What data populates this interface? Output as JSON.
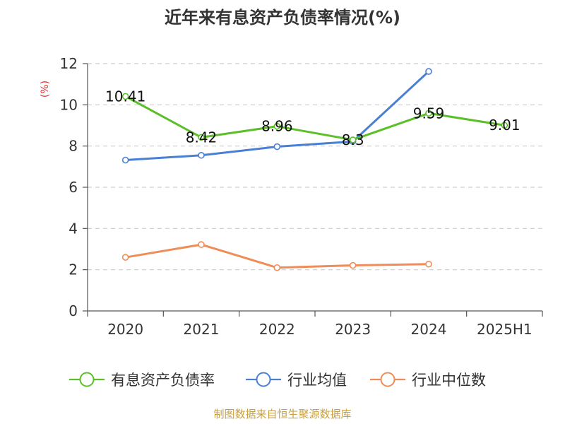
{
  "chart_data": {
    "type": "line",
    "title": "近年来有息资产负债率情况(%)",
    "unit_label": "(%)",
    "categories": [
      "2020",
      "2021",
      "2022",
      "2023",
      "2024",
      "2025H1"
    ],
    "ylim": [
      0,
      12
    ],
    "yticks": [
      "0",
      "2",
      "4",
      "6",
      "8",
      "10",
      "12"
    ],
    "grid": true,
    "legend_position": "bottom",
    "series": [
      {
        "name": "有息资产负债率",
        "color": "#5cbf2a",
        "values": [
          10.41,
          8.42,
          8.96,
          8.3,
          9.59,
          9.01
        ],
        "labels": [
          "10.41",
          "8.42",
          "8.96",
          "8.3",
          "9.59",
          "9.01"
        ]
      },
      {
        "name": "行业均值",
        "color": "#4a7fd6",
        "values": [
          7.32,
          7.55,
          7.97,
          8.22,
          11.62,
          null
        ]
      },
      {
        "name": "行业中位数",
        "color": "#f08c58",
        "values": [
          2.6,
          3.22,
          2.1,
          2.21,
          2.27,
          null
        ]
      }
    ],
    "source": "制图数据来自恒生聚源数据库"
  }
}
